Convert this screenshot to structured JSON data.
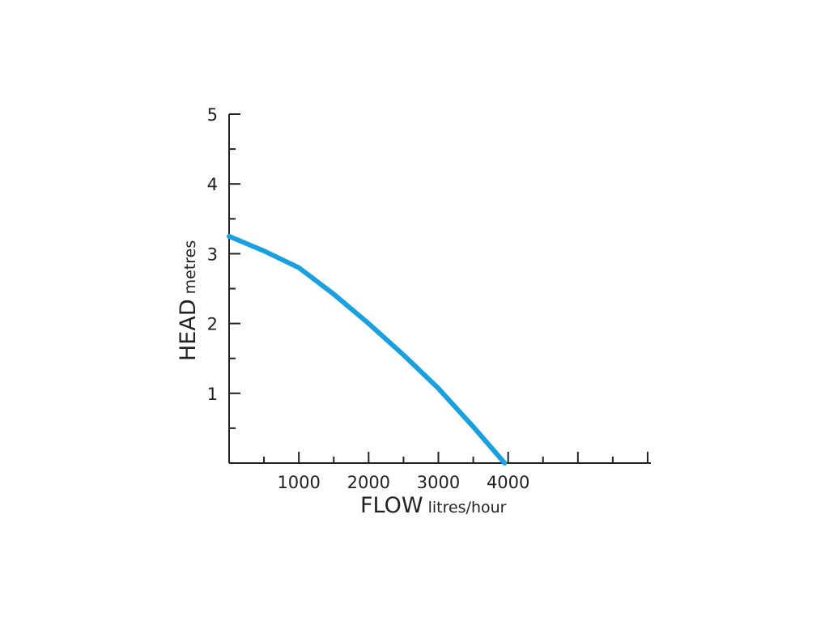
{
  "chart_data": {
    "type": "line",
    "y_label": {
      "main": "HEAD",
      "unit": "metres"
    },
    "x_label": {
      "main": "FLOW",
      "unit": "litres/hour"
    },
    "x": [
      0,
      500,
      1000,
      1500,
      2000,
      2500,
      3000,
      3500,
      3950
    ],
    "series": [
      {
        "color": "#1aa0dc",
        "values": [
          3.25,
          3.04,
          2.8,
          2.42,
          2.0,
          1.55,
          1.07,
          0.52,
          0
        ]
      }
    ],
    "xlim": [
      0,
      6000
    ],
    "ylim": [
      0,
      5
    ],
    "xticks": [
      1000,
      2000,
      3000,
      4000
    ],
    "xminor": [
      500,
      1500,
      2500,
      3500,
      4500,
      5000,
      5500,
      6000
    ],
    "yticks": [
      1,
      2,
      3,
      4,
      5
    ],
    "yminor": [
      0.5,
      1.5,
      2.5,
      3.5,
      4.5
    ]
  }
}
